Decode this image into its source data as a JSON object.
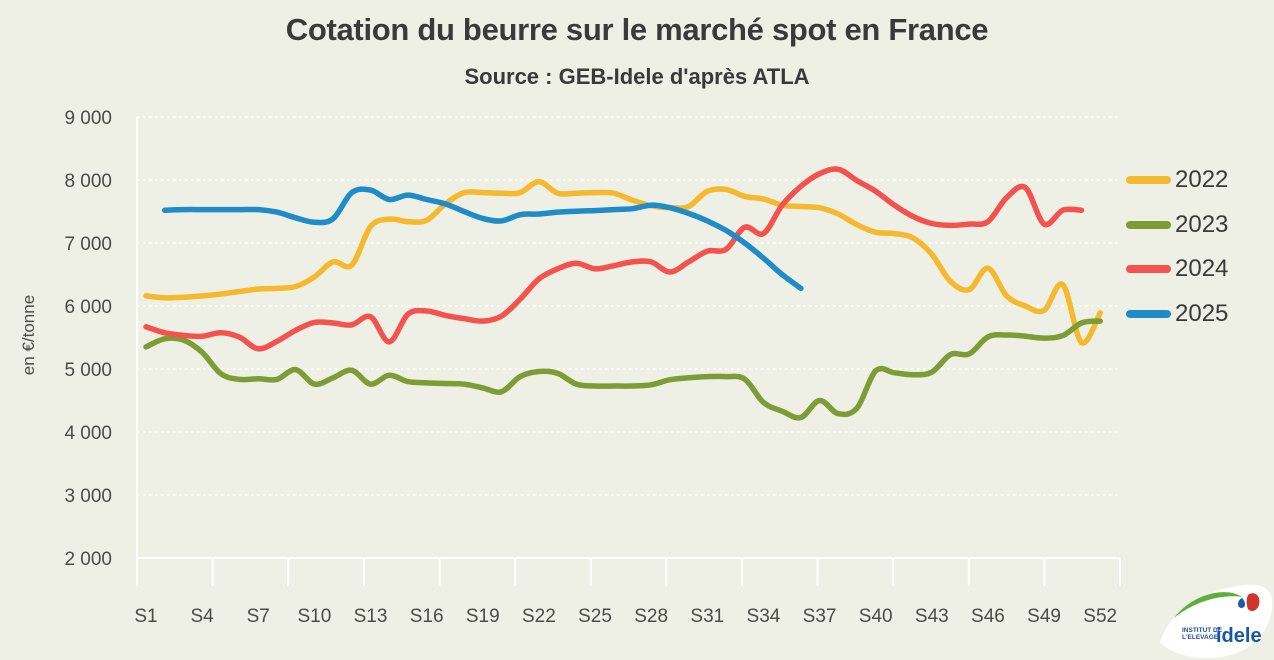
{
  "title": "Cotation du beurre sur le marché spot en France",
  "subtitle": "Source : GEB-Idele d'après ATLA",
  "y_axis": {
    "title": "en €/tonne",
    "tick_labels": [
      "9 000",
      "8 000",
      "7 000",
      "6 000",
      "5 000",
      "4 000",
      "3 000",
      "2 000"
    ],
    "tick_values": [
      9000,
      8000,
      7000,
      6000,
      5000,
      4000,
      3000,
      2000
    ]
  },
  "x_axis": {
    "tick_labels": [
      "S1",
      "S4",
      "S7",
      "S10",
      "S13",
      "S16",
      "S19",
      "S22",
      "S25",
      "S28",
      "S31",
      "S34",
      "S37",
      "S40",
      "S43",
      "S46",
      "S49",
      "S52"
    ],
    "tick_weeks": [
      1,
      4,
      7,
      10,
      13,
      16,
      19,
      22,
      25,
      28,
      31,
      34,
      37,
      40,
      43,
      46,
      49,
      52
    ]
  },
  "legend": [
    {
      "label": "2022",
      "color": "#F5B92F"
    },
    {
      "label": "2023",
      "color": "#7E9C35"
    },
    {
      "label": "2024",
      "color": "#F4524F"
    },
    {
      "label": "2025",
      "color": "#1F8CC7"
    }
  ],
  "colors": {
    "background": "#EFF0E5",
    "grid": "#FFFFFF",
    "text_dark": "#3a3a38",
    "text_axis": "#4b4b49"
  },
  "logo": {
    "line1": "INSTITUT DE",
    "line2": "L'ELEVAGE",
    "brand": "idele"
  },
  "chart_data": {
    "type": "line",
    "x_unit": "week of year",
    "weeks": 52,
    "ylabel": "en €/tonne",
    "ylim": [
      2000,
      9000
    ],
    "grid": "horizontal-dashed-white",
    "legend_position": "right",
    "series": [
      {
        "name": "2022",
        "color": "#F5B92F",
        "values": [
          6160,
          6130,
          6140,
          6160,
          6190,
          6230,
          6270,
          6280,
          6310,
          6460,
          6700,
          6650,
          7260,
          7380,
          7340,
          7360,
          7620,
          7800,
          7800,
          7790,
          7800,
          7975,
          7790,
          7790,
          7800,
          7790,
          7680,
          7590,
          7560,
          7580,
          7820,
          7850,
          7740,
          7700,
          7600,
          7580,
          7560,
          7460,
          7290,
          7170,
          7150,
          7080,
          6820,
          6390,
          6260,
          6600,
          6160,
          6000,
          5930,
          6340,
          5420,
          5890
        ]
      },
      {
        "name": "2023",
        "color": "#7E9C35",
        "values": [
          5350,
          5480,
          5460,
          5265,
          4925,
          4835,
          4845,
          4835,
          4990,
          4760,
          4860,
          4980,
          4760,
          4900,
          4800,
          4780,
          4770,
          4760,
          4700,
          4640,
          4880,
          4960,
          4930,
          4760,
          4730,
          4730,
          4730,
          4750,
          4830,
          4860,
          4880,
          4880,
          4840,
          4470,
          4330,
          4230,
          4500,
          4290,
          4380,
          4970,
          4940,
          4910,
          4950,
          5230,
          5240,
          5510,
          5540,
          5520,
          5490,
          5530,
          5730,
          5760
        ]
      },
      {
        "name": "2024",
        "color": "#F4524F",
        "values": [
          5670,
          5575,
          5535,
          5520,
          5575,
          5505,
          5320,
          5440,
          5615,
          5740,
          5730,
          5700,
          5830,
          5430,
          5870,
          5920,
          5850,
          5800,
          5760,
          5840,
          6110,
          6430,
          6590,
          6680,
          6590,
          6640,
          6700,
          6700,
          6540,
          6700,
          6870,
          6900,
          7250,
          7150,
          7600,
          7900,
          8100,
          8170,
          7990,
          7820,
          7600,
          7420,
          7310,
          7280,
          7300,
          7340,
          7720,
          7880,
          7300,
          7520,
          7520,
          null
        ]
      },
      {
        "name": "2025",
        "color": "#1F8CC7",
        "values": [
          null,
          7520,
          7530,
          7530,
          7530,
          7530,
          7530,
          7490,
          7400,
          7330,
          7385,
          7800,
          7840,
          7690,
          7760,
          7690,
          7620,
          7500,
          7390,
          7350,
          7450,
          7460,
          7490,
          7505,
          7515,
          7530,
          7545,
          7600,
          7560,
          7470,
          7350,
          7200,
          7000,
          6760,
          6500,
          6280,
          null,
          null,
          null,
          null,
          null,
          null,
          null,
          null,
          null,
          null,
          null,
          null,
          null,
          null,
          null,
          null
        ]
      }
    ]
  }
}
